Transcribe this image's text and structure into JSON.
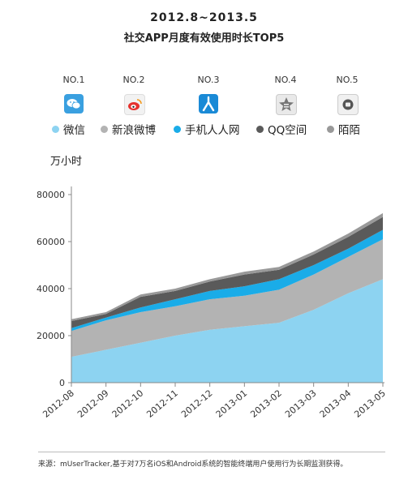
{
  "header": {
    "title": "2012.8~2013.5",
    "subtitle": "社交APP月度有效使用时长TOP5"
  },
  "ranks": [
    "NO.1",
    "NO.2",
    "NO.3",
    "NO.4",
    "NO.5"
  ],
  "icons": [
    "wechat-icon",
    "weibo-icon",
    "renren-icon",
    "qzone-icon",
    "momo-icon"
  ],
  "unit_label": "万小时",
  "footer": "来源：mUserTracker,基于对7万名iOS和Android系统的智能终端用户使用行为长期监测获得。",
  "chart_data": {
    "type": "area",
    "stacked": true,
    "categories": [
      "2012-08",
      "2012-09",
      "2012-10",
      "2012-11",
      "2012-12",
      "2013-01",
      "2013-02",
      "2013-03",
      "2013-04",
      "2013-05"
    ],
    "ylim": [
      0,
      80000
    ],
    "yticks": [
      0,
      20000,
      40000,
      60000,
      80000
    ],
    "series": [
      {
        "name": "微信",
        "color": "#8dd3f1",
        "values": [
          11000,
          14000,
          17000,
          20000,
          22500,
          24000,
          25500,
          31000,
          38000,
          44000
        ]
      },
      {
        "name": "新浪微博",
        "color": "#b3b3b3",
        "values": [
          11000,
          12500,
          13000,
          12500,
          13000,
          13000,
          14000,
          15000,
          15500,
          17000
        ]
      },
      {
        "name": "手机人人网",
        "color": "#1aace8",
        "values": [
          1200,
          1200,
          2000,
          3000,
          3500,
          4000,
          4500,
          4000,
          3500,
          4000
        ]
      },
      {
        "name": "QQ空间",
        "color": "#5a5a5a",
        "values": [
          3000,
          1500,
          4500,
          3500,
          4000,
          5000,
          4000,
          4500,
          5000,
          5500
        ]
      },
      {
        "name": "陌陌",
        "color": "#999999",
        "values": [
          800,
          800,
          1000,
          1000,
          1000,
          1200,
          1200,
          1300,
          1400,
          1600
        ]
      }
    ],
    "grid": false,
    "legend": "top"
  }
}
